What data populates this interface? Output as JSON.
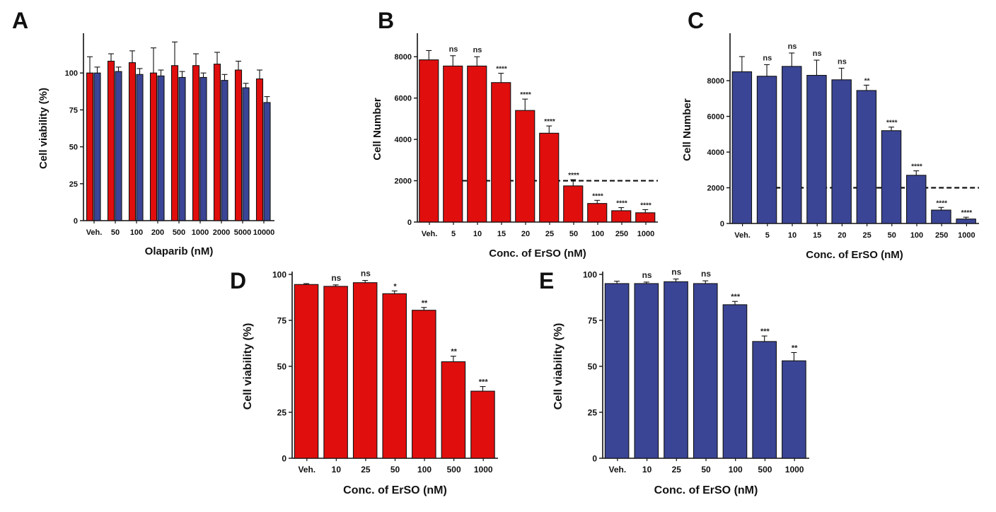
{
  "colors": {
    "red": "#e10e0e",
    "blue": "#3a4596",
    "axis": "#111111"
  },
  "chart_data": [
    {
      "panel": "A",
      "type": "bar",
      "xlabel": "Olaparib (nM)",
      "ylabel": "Cell viability (%)",
      "ylim": [
        0,
        125
      ],
      "yticks": [
        "0",
        "25",
        "50",
        "75",
        "100"
      ],
      "categories": [
        "Veh.",
        "50",
        "100",
        "200",
        "500",
        "1000",
        "2000",
        "5000",
        "10000"
      ],
      "series": [
        {
          "color": "red",
          "values": [
            100,
            108,
            107,
            100,
            105,
            105,
            106,
            102,
            96
          ],
          "errors": [
            11,
            5,
            8,
            17,
            16,
            8,
            8,
            6,
            6
          ]
        },
        {
          "color": "blue",
          "values": [
            100,
            101,
            99,
            98,
            97,
            97,
            95,
            90,
            80
          ],
          "errors": [
            4,
            3,
            4,
            4,
            4,
            3,
            4,
            3,
            4
          ]
        }
      ],
      "annotations": [],
      "grid": false
    },
    {
      "panel": "B",
      "type": "bar",
      "xlabel": "Conc. of ErSO (nM)",
      "ylabel": "Cell Number",
      "ylim": [
        0,
        9000
      ],
      "yticks": [
        "0",
        "2000",
        "4000",
        "6000",
        "8000"
      ],
      "categories": [
        "Veh.",
        "5",
        "10",
        "15",
        "20",
        "25",
        "50",
        "100",
        "250",
        "1000"
      ],
      "series": [
        {
          "color": "red",
          "values": [
            7850,
            7550,
            7550,
            6750,
            5400,
            4300,
            1750,
            900,
            550,
            450
          ],
          "errors": [
            450,
            500,
            450,
            450,
            550,
            350,
            300,
            150,
            150,
            150
          ]
        }
      ],
      "annotations": [
        "",
        "ns",
        "ns",
        "****",
        "****",
        "****",
        "****",
        "****",
        "****",
        "****"
      ],
      "threshold": 2000,
      "grid": false
    },
    {
      "panel": "C",
      "type": "bar",
      "xlabel": "Conc. of ErSO (nM)",
      "ylabel": "Cell Number",
      "ylim": [
        0,
        10500
      ],
      "yticks": [
        "0",
        "2000",
        "4000",
        "6000",
        "8000"
      ],
      "categories": [
        "Veh.",
        "5",
        "10",
        "15",
        "20",
        "25",
        "50",
        "100",
        "250",
        "1000"
      ],
      "series": [
        {
          "color": "blue",
          "values": [
            8500,
            8250,
            8800,
            8300,
            8050,
            7450,
            5200,
            2700,
            750,
            250
          ],
          "errors": [
            850,
            650,
            750,
            850,
            650,
            300,
            200,
            250,
            150,
            100
          ]
        }
      ],
      "annotations": [
        "",
        "ns",
        "ns",
        "ns",
        "ns",
        "**",
        "****",
        "****",
        "****",
        "****"
      ],
      "threshold": 2000,
      "grid": false
    },
    {
      "panel": "D",
      "type": "bar",
      "xlabel": "Conc. of ErSO (nM)",
      "ylabel": "Cell viability (%)",
      "ylim": [
        0,
        100
      ],
      "yticks": [
        "0",
        "25",
        "50",
        "75",
        "100"
      ],
      "categories": [
        "Veh.",
        "10",
        "25",
        "50",
        "100",
        "500",
        "1000"
      ],
      "series": [
        {
          "color": "red",
          "values": [
            94.5,
            93.5,
            95.5,
            89.5,
            80.5,
            52.5,
            36.5
          ],
          "errors": [
            0.5,
            0.8,
            1.2,
            1.5,
            1.5,
            3,
            2.5
          ]
        }
      ],
      "annotations": [
        "",
        "ns",
        "ns",
        "*",
        "**",
        "**",
        "***"
      ],
      "grid": false
    },
    {
      "panel": "E",
      "type": "bar",
      "xlabel": "Conc. of ErSO (nM)",
      "ylabel": "Cell viability (%)",
      "ylim": [
        0,
        100
      ],
      "yticks": [
        "0",
        "25",
        "50",
        "75",
        "100"
      ],
      "categories": [
        "Veh.",
        "10",
        "25",
        "50",
        "100",
        "500",
        "1000"
      ],
      "series": [
        {
          "color": "blue",
          "values": [
            95,
            95,
            96,
            95,
            83.5,
            63.5,
            53
          ],
          "errors": [
            1.3,
            0.8,
            1.5,
            1.5,
            1.8,
            3,
            4.5
          ]
        }
      ],
      "annotations": [
        "",
        "ns",
        "ns",
        "ns",
        "***",
        "***",
        "**"
      ],
      "grid": false
    }
  ]
}
